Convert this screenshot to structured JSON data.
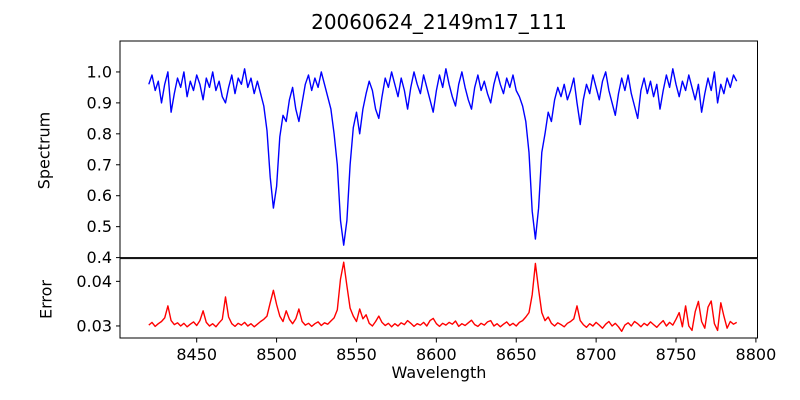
{
  "chart_data": {
    "type": "line",
    "title": "20060624_2149m17_111",
    "xlabel": "Wavelength",
    "x_start": 8420,
    "x_step": 2,
    "xlim": [
      8402,
      8801
    ],
    "xticks": [
      8450,
      8500,
      8550,
      8600,
      8650,
      8700,
      8750,
      8800
    ],
    "xtick_labels": [
      "8450",
      "8500",
      "8550",
      "8600",
      "8650",
      "8700",
      "8750",
      "8800"
    ],
    "grid": false,
    "legend": "none",
    "subplots": [
      {
        "name": "spectrum",
        "ylabel": "Spectrum",
        "ylim": [
          0.4,
          1.1
        ],
        "yticks": [
          1.0,
          0.9,
          0.8,
          0.7,
          0.6,
          0.5,
          0.4
        ],
        "ytick_labels": [
          "1.0",
          "0.9",
          "0.8",
          "0.7",
          "0.6",
          "0.5",
          "0.4"
        ],
        "series": [
          {
            "name": "spectrum",
            "color": "#0000ff",
            "values": [
              0.96,
              0.99,
              0.94,
              0.97,
              0.9,
              0.96,
              1.0,
              0.87,
              0.93,
              0.98,
              0.95,
              1.0,
              0.92,
              0.97,
              0.94,
              0.99,
              0.96,
              0.91,
              0.98,
              0.95,
              1.0,
              0.94,
              0.97,
              0.92,
              0.9,
              0.95,
              0.99,
              0.93,
              0.98,
              0.96,
              1.01,
              0.95,
              0.98,
              0.93,
              0.97,
              0.93,
              0.89,
              0.81,
              0.66,
              0.56,
              0.63,
              0.79,
              0.86,
              0.84,
              0.91,
              0.95,
              0.88,
              0.84,
              0.9,
              0.96,
              0.99,
              0.94,
              0.98,
              0.95,
              1.0,
              0.96,
              0.92,
              0.88,
              0.8,
              0.7,
              0.52,
              0.44,
              0.52,
              0.7,
              0.82,
              0.87,
              0.8,
              0.88,
              0.93,
              0.97,
              0.94,
              0.88,
              0.85,
              0.92,
              0.98,
              0.95,
              1.0,
              0.96,
              0.92,
              0.98,
              0.94,
              0.88,
              0.95,
              1.0,
              0.96,
              0.93,
              0.99,
              0.95,
              0.91,
              0.87,
              0.94,
              0.99,
              0.95,
              1.01,
              0.96,
              0.92,
              0.89,
              0.96,
              1.0,
              0.95,
              0.91,
              0.88,
              0.95,
              0.99,
              0.94,
              0.97,
              0.93,
              0.9,
              0.96,
              1.0,
              0.96,
              0.93,
              0.98,
              0.95,
              0.99,
              0.94,
              0.92,
              0.89,
              0.84,
              0.74,
              0.55,
              0.46,
              0.56,
              0.74,
              0.8,
              0.87,
              0.84,
              0.91,
              0.95,
              0.92,
              0.96,
              0.91,
              0.94,
              0.98,
              0.9,
              0.83,
              0.91,
              0.96,
              0.93,
              0.99,
              0.95,
              0.91,
              0.97,
              1.0,
              0.94,
              0.9,
              0.86,
              0.93,
              0.98,
              0.94,
              0.99,
              0.93,
              0.89,
              0.85,
              0.94,
              0.98,
              0.93,
              0.97,
              0.92,
              0.96,
              0.88,
              0.94,
              0.99,
              0.95,
              1.01,
              0.96,
              0.92,
              0.97,
              0.94,
              0.99,
              0.95,
              0.91,
              0.96,
              0.87,
              0.93,
              0.98,
              0.94,
              1.0,
              0.9,
              0.96,
              0.93,
              0.98,
              0.95,
              0.99,
              0.97
            ]
          }
        ]
      },
      {
        "name": "error",
        "ylabel": "Error",
        "ylim": [
          0.0273,
          0.0451
        ],
        "yticks": [
          0.04,
          0.03
        ],
        "ytick_labels": [
          "0.04",
          "0.03"
        ],
        "series": [
          {
            "name": "error",
            "color": "#ff0000",
            "values": [
              0.0302,
              0.0308,
              0.0299,
              0.0305,
              0.031,
              0.0318,
              0.0345,
              0.0312,
              0.0303,
              0.0307,
              0.03,
              0.0306,
              0.0298,
              0.0304,
              0.0309,
              0.0301,
              0.0312,
              0.0334,
              0.0308,
              0.03,
              0.0305,
              0.0298,
              0.0307,
              0.0315,
              0.0365,
              0.032,
              0.0305,
              0.0299,
              0.0306,
              0.0302,
              0.0308,
              0.03,
              0.0305,
              0.0298,
              0.0304,
              0.031,
              0.0315,
              0.0322,
              0.0352,
              0.038,
              0.0348,
              0.0322,
              0.031,
              0.0334,
              0.0315,
              0.0305,
              0.0316,
              0.0338,
              0.031,
              0.0302,
              0.0306,
              0.0299,
              0.0305,
              0.0309,
              0.0301,
              0.0307,
              0.0304,
              0.0311,
              0.0318,
              0.0336,
              0.0405,
              0.0443,
              0.039,
              0.034,
              0.0322,
              0.031,
              0.0338,
              0.0316,
              0.0325,
              0.0306,
              0.03,
              0.031,
              0.0322,
              0.0308,
              0.0301,
              0.0306,
              0.0298,
              0.0305,
              0.03,
              0.0307,
              0.0303,
              0.0312,
              0.0306,
              0.0299,
              0.0305,
              0.0302,
              0.0308,
              0.03,
              0.0312,
              0.0317,
              0.0305,
              0.0299,
              0.0306,
              0.0302,
              0.0308,
              0.0304,
              0.0311,
              0.0299,
              0.0305,
              0.0301,
              0.0307,
              0.0313,
              0.0303,
              0.0299,
              0.0306,
              0.0302,
              0.0309,
              0.0312,
              0.03,
              0.0305,
              0.0298,
              0.0304,
              0.0309,
              0.0301,
              0.0306,
              0.03,
              0.0308,
              0.0312,
              0.032,
              0.033,
              0.037,
              0.044,
              0.0382,
              0.033,
              0.0312,
              0.032,
              0.0306,
              0.03,
              0.0307,
              0.0303,
              0.0298,
              0.0306,
              0.031,
              0.0316,
              0.0345,
              0.0312,
              0.0303,
              0.0297,
              0.0305,
              0.03,
              0.0308,
              0.0302,
              0.0295,
              0.0304,
              0.031,
              0.03,
              0.0306,
              0.0298,
              0.0288,
              0.0302,
              0.0307,
              0.03,
              0.031,
              0.0305,
              0.0298,
              0.0306,
              0.0301,
              0.0309,
              0.0303,
              0.0297,
              0.0305,
              0.0312,
              0.03,
              0.0308,
              0.0302,
              0.0315,
              0.033,
              0.0298,
              0.0345,
              0.03,
              0.029,
              0.0332,
              0.0355,
              0.031,
              0.0295,
              0.0342,
              0.0356,
              0.0305,
              0.029,
              0.0352,
              0.0322,
              0.0295,
              0.031,
              0.0304,
              0.0308
            ]
          }
        ]
      }
    ],
    "colors": {
      "spectrum_line": "#0000ff",
      "error_line": "#ff0000",
      "axes": "#000000"
    }
  }
}
